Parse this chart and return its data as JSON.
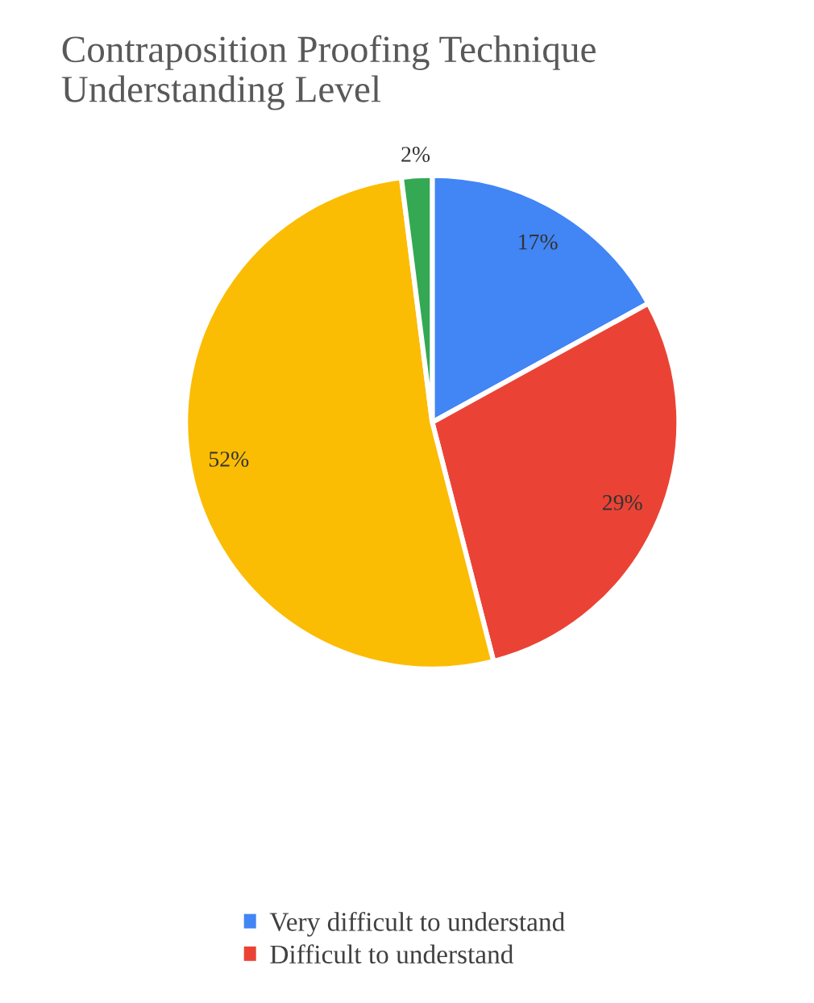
{
  "chart_data": {
    "type": "pie",
    "title": "Contraposition Proofing Technique Understanding Level",
    "categories": [
      "Very difficult to understand",
      "Difficult to understand",
      null,
      null
    ],
    "values": [
      17,
      29,
      52,
      2
    ],
    "colors": [
      "#4285f4",
      "#ea4335",
      "#fbbc04",
      "#34a853"
    ],
    "value_labels": [
      "17%",
      "29%",
      "52%",
      "2%"
    ],
    "legend": "bottom"
  }
}
